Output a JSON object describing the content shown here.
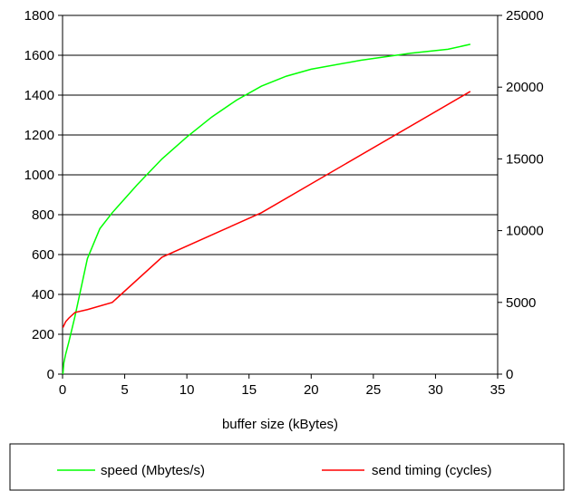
{
  "chart_data": {
    "type": "line",
    "title": "",
    "xlabel": "buffer size (kBytes)",
    "ylabel_left": "",
    "ylabel_right": "",
    "xlim": [
      0,
      35
    ],
    "ylim_left": [
      0,
      1800
    ],
    "ylim_right": [
      0,
      25000
    ],
    "x_ticks": [
      0,
      5,
      10,
      15,
      20,
      25,
      30,
      35
    ],
    "y_left_ticks": [
      0,
      200,
      400,
      600,
      800,
      1000,
      1200,
      1400,
      1600,
      1800
    ],
    "y_right_ticks": [
      0,
      5000,
      10000,
      15000,
      20000,
      25000
    ],
    "grid": "horizontal",
    "legend_position": "bottom",
    "series": [
      {
        "name": "speed (Mbytes/s)",
        "axis": "left",
        "color": "#00ff00",
        "x": [
          0.03,
          0.1,
          0.25,
          0.5,
          1,
          2,
          3,
          4,
          6,
          8,
          10,
          12,
          14,
          16,
          18,
          20,
          24,
          28,
          31,
          32.8
        ],
        "y": [
          0,
          55,
          100,
          160,
          290,
          580,
          730,
          810,
          950,
          1080,
          1190,
          1290,
          1375,
          1445,
          1495,
          1530,
          1575,
          1610,
          1630,
          1655
        ]
      },
      {
        "name": "send timing (cycles)",
        "axis": "right",
        "color": "#ff0000",
        "x": [
          0.03,
          0.25,
          0.5,
          1,
          2,
          4,
          8,
          16,
          32.8
        ],
        "y": [
          3250,
          3650,
          3900,
          4300,
          4500,
          5000,
          8150,
          11250,
          19700
        ]
      }
    ]
  }
}
